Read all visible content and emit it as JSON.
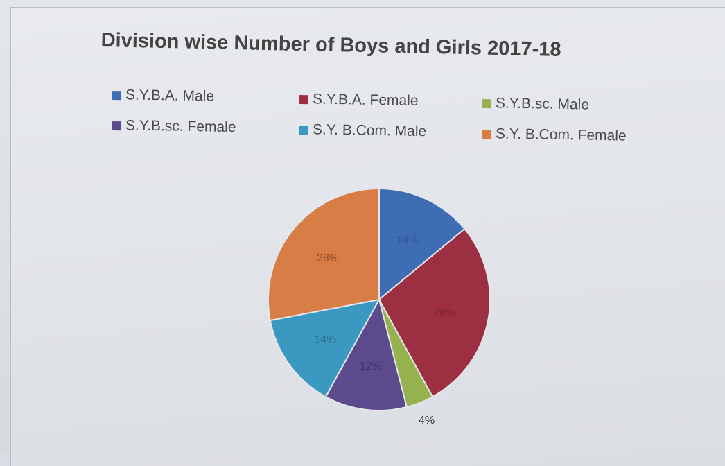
{
  "chart_data": {
    "type": "pie",
    "title": "Division wise Number of Boys and Girls 2017-18",
    "legend_position": "top",
    "categories": [
      "S.Y.B.A. Male",
      "S.Y.B.A. Female",
      "S.Y.B.sc. Male",
      "S.Y.B.sc. Female",
      "S.Y. B.Com. Male",
      "S.Y. B.Com. Female"
    ],
    "values": [
      14,
      28,
      4,
      12,
      14,
      28
    ],
    "labels": [
      "14%",
      "28%",
      "4%",
      "12%",
      "14%",
      "28%"
    ],
    "colors": [
      "#3f6db3",
      "#9c3042",
      "#95b24e",
      "#5b4a8c",
      "#3b98c0",
      "#d97d47"
    ]
  }
}
